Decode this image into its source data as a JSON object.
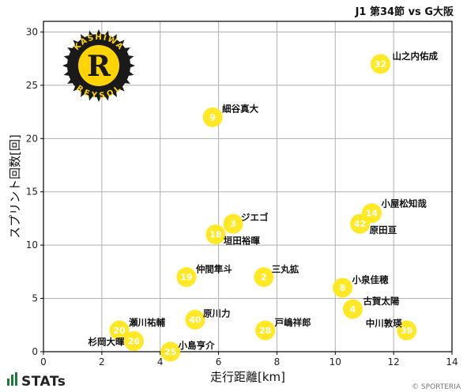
{
  "chart_data": {
    "type": "scatter",
    "title": "J1 第34節 vs G大阪",
    "xlabel": "走行距離[km]",
    "ylabel": "スプリント回数[回]",
    "xlim": [
      0,
      14
    ],
    "ylim": [
      0,
      31
    ],
    "xticks": [
      0,
      2,
      4,
      6,
      8,
      10,
      12,
      14
    ],
    "yticks": [
      0,
      5,
      10,
      15,
      20,
      25,
      30
    ],
    "grid": true,
    "marker_color": "#ffe81a",
    "points": [
      {
        "number": "32",
        "name": "山之内佑成",
        "x": 11.55,
        "y": 27
      },
      {
        "number": "9",
        "name": "細谷真大",
        "x": 5.8,
        "y": 22
      },
      {
        "number": "14",
        "name": "小屋松知哉",
        "x": 11.25,
        "y": 13
      },
      {
        "number": "42",
        "name": "原田亘",
        "x": 10.85,
        "y": 12
      },
      {
        "number": "3",
        "name": "ジエゴ",
        "x": 6.5,
        "y": 12
      },
      {
        "number": "18",
        "name": "垣田裕暉",
        "x": 5.9,
        "y": 11
      },
      {
        "number": "19",
        "name": "仲間隼斗",
        "x": 4.9,
        "y": 7
      },
      {
        "number": "2",
        "name": "三丸拡",
        "x": 7.55,
        "y": 7
      },
      {
        "number": "8",
        "name": "小泉佳穂",
        "x": 10.25,
        "y": 6
      },
      {
        "number": "4",
        "name": "古賀太陽",
        "x": 10.6,
        "y": 4
      },
      {
        "number": "40",
        "name": "原川力",
        "x": 5.2,
        "y": 3
      },
      {
        "number": "20",
        "name": "瀬川祐輔",
        "x": 2.6,
        "y": 2
      },
      {
        "number": "28",
        "name": "戸嶋祥郎",
        "x": 7.6,
        "y": 2
      },
      {
        "number": "39",
        "name": "中川敦瑛",
        "x": 12.45,
        "y": 2
      },
      {
        "number": "26",
        "name": "杉岡大暉",
        "x": 3.1,
        "y": 1
      },
      {
        "number": "25",
        "name": "小島亨介",
        "x": 4.35,
        "y": 0
      }
    ]
  },
  "branding": {
    "club_logo_text_top": "KASHIWA",
    "club_logo_text_bottom": "REYSOL",
    "club_logo_letter": "R",
    "stats_logo": "STATs",
    "credit": "© SPORTERIA"
  }
}
